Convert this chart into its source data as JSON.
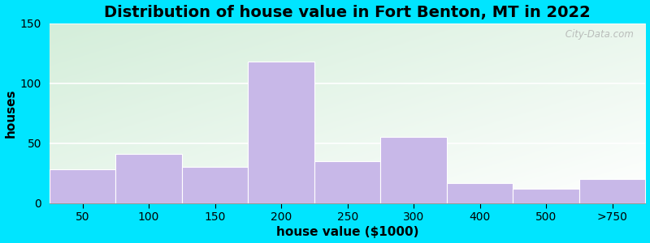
{
  "title": "Distribution of house value in Fort Benton, MT in 2022",
  "xlabel": "house value ($1000)",
  "ylabel": "houses",
  "categories": [
    "50",
    "100",
    "150",
    "200",
    "250",
    "300",
    "400",
    "500",
    ">750"
  ],
  "values": [
    28,
    41,
    30,
    118,
    35,
    55,
    17,
    12,
    20
  ],
  "bar_color": "#c8b8e8",
  "ylim": [
    0,
    150
  ],
  "yticks": [
    0,
    50,
    100,
    150
  ],
  "outer_background": "#00e5ff",
  "bg_color_topleft": "#d4eeda",
  "bg_color_white": "#ffffff",
  "title_fontsize": 14,
  "axis_label_fontsize": 11,
  "tick_fontsize": 10,
  "watermark_text": " City-Data.com"
}
